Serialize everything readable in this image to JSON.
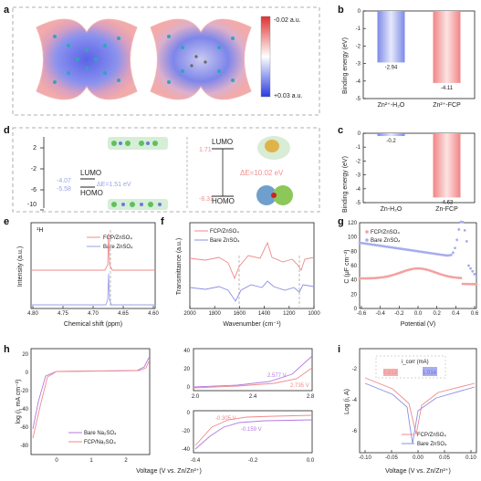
{
  "panels": {
    "a": {
      "label": "a",
      "colorbar": {
        "top": "-0.02 a.u.",
        "bottom": "+0.03 a.u."
      },
      "colors": {
        "negative": "#e03030",
        "positive": "#2a3be0"
      }
    },
    "b": {
      "label": "b",
      "chart_data": {
        "type": "bar",
        "ylabel": "Binding energy (eV)",
        "categories": [
          "Zn²⁺-H₂O",
          "Zn²⁺-FCP"
        ],
        "values": [
          -2.94,
          -4.11
        ],
        "value_labels": [
          "-2.94",
          "-4.11"
        ],
        "ylim": [
          0,
          -5
        ],
        "yticks": [
          "0",
          "-1",
          "-2",
          "-3",
          "-4",
          "-5"
        ],
        "colors": [
          "#9aa8f0",
          "#f4a0a0"
        ]
      }
    },
    "c": {
      "label": "c",
      "chart_data": {
        "type": "bar",
        "ylabel": "Binding energy (eV)",
        "categories": [
          "Zn-H₂O",
          "Zn-FCP"
        ],
        "values": [
          -0.2,
          -4.63
        ],
        "value_labels": [
          "-0.2",
          "-4.63"
        ],
        "ylim": [
          0,
          -5
        ],
        "yticks": [
          "0",
          "-1",
          "-2",
          "-3",
          "-4",
          "-5"
        ],
        "colors": [
          "#9aa8f0",
          "#f4a0a0"
        ]
      }
    },
    "d": {
      "label": "d",
      "yticks": [
        "2",
        "-2",
        "-6",
        "-10"
      ],
      "left_values": [
        "-4.07",
        "-5.58"
      ],
      "left_lumo": "LUMO",
      "left_homo": "HOMO",
      "left_gap": "ΔE=1.51 eV",
      "right_lumo_val": "1.71",
      "right_homo_val": "-8.31",
      "right_lumo": "LUMO",
      "right_homo": "HOMO",
      "right_gap": "ΔE=10.02 eV",
      "ylabel": "Energy (eV)"
    },
    "e": {
      "label": "e",
      "nucleus": "¹H",
      "xlabel": "Chemical shift (ppm)",
      "ylabel": "Intensity (a.u.)",
      "legend": [
        "FCP/ZnSO₄",
        "Bare ZnSO₄"
      ],
      "xticks": [
        "4.80",
        "4.75",
        "4.70",
        "4.65",
        "4.60"
      ],
      "chart_data": {
        "type": "line",
        "xlim": [
          4.8,
          4.6
        ],
        "series": [
          {
            "name": "FCP/ZnSO₄",
            "peak": 4.718,
            "color": "#f08a8a"
          },
          {
            "name": "Bare ZnSO₄",
            "peak": 4.712,
            "color": "#9aa0e8"
          }
        ]
      }
    },
    "f": {
      "label": "f",
      "xlabel": "Wavenumber (cm⁻¹)",
      "ylabel": "Transmittance (a.u.)",
      "legend": [
        "FCP/ZnSO₄",
        "Bare ZnSO₄"
      ],
      "xticks": [
        "2000",
        "1800",
        "1600",
        "1400",
        "1200",
        "1000"
      ],
      "chart_data": {
        "type": "line",
        "xlim": [
          2000,
          1000
        ],
        "series": [
          {
            "name": "FCP/ZnSO₄",
            "color": "#f08a8a"
          },
          {
            "name": "Bare ZnSO₄",
            "color": "#8a90e0"
          }
        ]
      }
    },
    "g": {
      "label": "g",
      "xlabel": "Potential (V)",
      "ylabel": "C (μF cm⁻²)",
      "legend": [
        "FCP/ZnSO₄",
        "Bare ZnSO₄"
      ],
      "xticks": [
        "-0.6",
        "-0.4",
        "-0.2",
        "0.0",
        "0.2",
        "0.4",
        "0.6"
      ],
      "yticks": [
        "0",
        "20",
        "40",
        "60",
        "80",
        "100",
        "120"
      ],
      "chart_data": {
        "type": "scatter",
        "xlim": [
          -0.6,
          0.6
        ],
        "ylim": [
          0,
          120
        ],
        "series": [
          {
            "name": "FCP/ZnSO₄",
            "color": "#f4a0a0"
          },
          {
            "name": "Bare ZnSO₄",
            "color": "#a6acec"
          }
        ]
      }
    },
    "h": {
      "label": "h",
      "xlabel": "Voltage (V vs. Zn/Zn²⁺)",
      "ylabel": "log (i, mA cm⁻²)",
      "legend": [
        "Bare Na₂SO₄",
        "FCP/Na₂SO₄"
      ],
      "main_yticks": [
        "20",
        "0",
        "-20",
        "-40",
        "-60",
        "-80"
      ],
      "main_xticks": [
        "0",
        "1",
        "2"
      ],
      "inset_top": {
        "yticks": [
          "40",
          "20",
          "0"
        ],
        "xticks": [
          "2.0",
          "2.4",
          "2.8"
        ],
        "labels": [
          "2.577 V",
          "2.735 V"
        ]
      },
      "inset_bottom": {
        "yticks": [
          "0",
          "-20",
          "-40"
        ],
        "xticks": [
          "-0.4",
          "-0.2",
          "0.0"
        ],
        "labels": [
          "-0.305 V",
          "-0.159 V"
        ]
      }
    },
    "i": {
      "label": "i",
      "xlabel": "Voltage (V vs. Zn/Zn²⁺)",
      "ylabel": "Log (i, A)",
      "legend": [
        "FCP/ZnSO₄",
        "Bare ZnSO₄"
      ],
      "inset_title": "i_corr (mA)",
      "inset_values": [
        "0.813",
        "1.014"
      ],
      "xticks": [
        "-0.10",
        "-0.05",
        "0.00",
        "0.05",
        "0.10"
      ],
      "yticks": [
        "-2",
        "-4",
        "-6"
      ]
    }
  }
}
